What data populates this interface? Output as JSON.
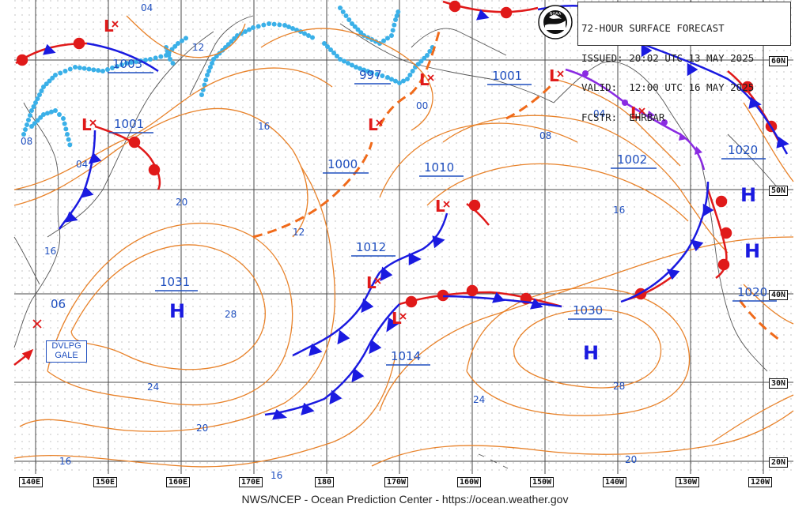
{
  "header": {
    "line1": "72-HOUR SURFACE FORECAST",
    "line2": "ISSUED: 20:02 UTC 13 MAY 2025",
    "line3": "VALID:  12:00 UTC 16 MAY 2025",
    "line4": "FCSTR:  EHRBAR"
  },
  "logo": {
    "text": "NOAA"
  },
  "footer": {
    "text": "NWS/NCEP - Ocean Prediction Center - https://ocean.weather.gov"
  },
  "longitude_labels": [
    "140E",
    "150E",
    "160E",
    "170E",
    "180",
    "170W",
    "160W",
    "150W",
    "140W",
    "130W",
    "120W"
  ],
  "latitude_labels": [
    "60N",
    "50N",
    "40N",
    "30N",
    "20N"
  ],
  "pressure_centers": [
    {
      "type": "H",
      "value": "1031"
    },
    {
      "type": "H",
      "value": "1030"
    },
    {
      "type": "H",
      "value": "1020"
    },
    {
      "type": "H",
      "value": "1020"
    },
    {
      "type": "L",
      "value": "1001"
    },
    {
      "type": "L",
      "value": "1003"
    },
    {
      "type": "L",
      "value": "1000"
    },
    {
      "type": "L",
      "value": "997"
    },
    {
      "type": "L",
      "value": "1001"
    },
    {
      "type": "L",
      "value": "1002"
    },
    {
      "type": "L",
      "value": "1010"
    },
    {
      "type": "L",
      "value": "1012"
    },
    {
      "type": "L",
      "value": "1014"
    }
  ],
  "isobar_labels": [
    "04",
    "12",
    "08",
    "04",
    "16",
    "20",
    "28",
    "24",
    "20",
    "16",
    "16",
    "12",
    "00",
    "08",
    "04",
    "16",
    "28",
    "24",
    "20",
    "06",
    "16"
  ],
  "warning": {
    "line1": "DVLPG",
    "line2": "GALE"
  },
  "colors": {
    "isobar": "#e8822a",
    "grid": "#555555",
    "cold_front": "#1a1ae0",
    "warm_front": "#e01a1a",
    "occluded_front": "#8a2be2",
    "trough": "#f06a1a",
    "label_blue": "#1f4fbf",
    "low_red": "#e01a1a",
    "ice_edge": "#3ab0e8"
  }
}
